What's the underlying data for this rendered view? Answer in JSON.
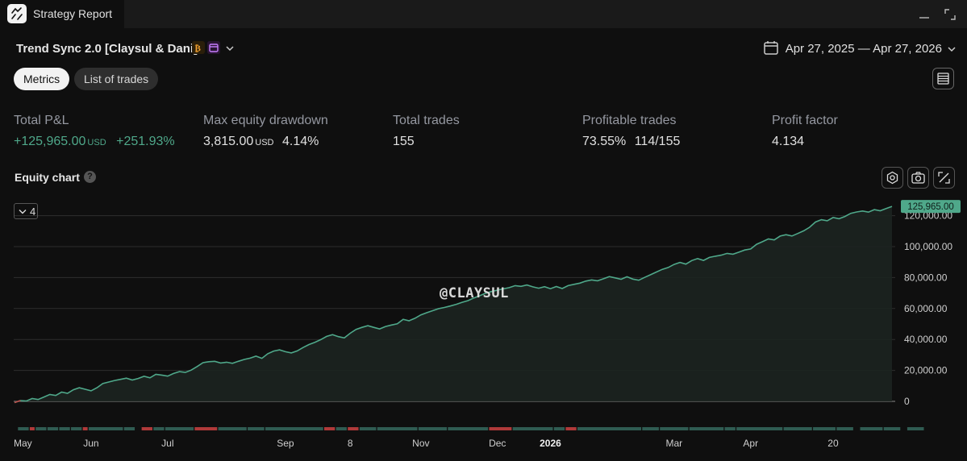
{
  "window": {
    "title": "Strategy Report",
    "app_icon": "strategy-report-icon",
    "controls": [
      "minimize-icon",
      "expand-icon"
    ]
  },
  "header": {
    "strategy_name": "Trend Sync 2.0 [Claysul & Dani]",
    "badges": [
      "bitcoin-icon",
      "calendar-badge-icon"
    ],
    "date_range": "Apr 27, 2025 — Apr 27, 2026"
  },
  "tabs": [
    {
      "label": "Metrics",
      "active": true
    },
    {
      "label": "List of trades",
      "active": false
    }
  ],
  "metrics": {
    "total_pl": {
      "label": "Total P&L",
      "value": "+125,965.00",
      "unit": "USD",
      "percent": "+251.93%"
    },
    "max_drawdown": {
      "label": "Max equity drawdown",
      "value": "3,815.00",
      "unit": "USD",
      "percent": "4.14%"
    },
    "total_trades": {
      "label": "Total trades",
      "value": "155"
    },
    "profitable_trades": {
      "label": "Profitable trades",
      "percent": "73.55%",
      "ratio": "114/155"
    },
    "profit_factor": {
      "label": "Profit factor",
      "value": "4.134"
    }
  },
  "equity_chart": {
    "title": "Equity chart",
    "help": "?",
    "collapse_count": "4",
    "watermark": "@CLAYSUL",
    "tools": [
      "settings-icon",
      "camera-icon",
      "fullscreen-icon"
    ]
  },
  "colors": {
    "accent_green": "#4fa88a",
    "loss_red": "#b03a3a",
    "bg": "#0f0f0f"
  },
  "chart_data": {
    "type": "area",
    "title": "",
    "xlabel": "",
    "ylabel": "",
    "ylim": [
      -8000,
      132000
    ],
    "last_value_label": "125,965.00",
    "y_ticks": [
      {
        "value": 120000,
        "label": "120,000.00"
      },
      {
        "value": 100000,
        "label": "100,000.00"
      },
      {
        "value": 80000,
        "label": "80,000.00"
      },
      {
        "value": 60000,
        "label": "60,000.00"
      },
      {
        "value": 40000,
        "label": "40,000.00"
      },
      {
        "value": 20000,
        "label": "20,000.00"
      },
      {
        "value": 0,
        "label": "0"
      }
    ],
    "x_ticks": [
      {
        "label": "May",
        "bold": false
      },
      {
        "label": "Jun",
        "bold": false
      },
      {
        "label": "Jul",
        "bold": false
      },
      {
        "label": "Sep",
        "bold": false
      },
      {
        "label": "8",
        "bold": false
      },
      {
        "label": "Nov",
        "bold": false
      },
      {
        "label": "Dec",
        "bold": false
      },
      {
        "label": "2026",
        "bold": true
      },
      {
        "label": "Mar",
        "bold": false
      },
      {
        "label": "Apr",
        "bold": false
      },
      {
        "label": "20",
        "bold": false
      }
    ],
    "x_tick_trade_index": [
      1,
      14,
      27,
      47,
      58,
      70,
      83,
      92,
      113,
      126,
      140
    ],
    "series": [
      {
        "values": [
          -800,
          500,
          200,
          1800,
          1200,
          2800,
          4500,
          3800,
          6000,
          5200,
          7500,
          8800,
          7800,
          6800,
          8800,
          11500,
          12500,
          13500,
          14200,
          15000,
          13800,
          14800,
          16200,
          15200,
          17500,
          17000,
          16300,
          18000,
          19200,
          18700,
          20200,
          22500,
          25000,
          25600,
          25900,
          24800,
          25300,
          24600,
          25900,
          27100,
          27900,
          29200,
          27800,
          30800,
          32500,
          33300,
          32100,
          31300,
          32600,
          34800,
          36700,
          38200,
          39900,
          42000,
          43100,
          41800,
          41000,
          44000,
          46500,
          47800,
          48900,
          47800,
          46800,
          48400,
          49300,
          50100,
          53000,
          52100,
          53700,
          55900,
          57300,
          58600,
          59900,
          60700,
          61600,
          62700,
          64000,
          65100,
          66800,
          68300,
          69900,
          71000,
          71900,
          72700,
          73500,
          74800,
          74300,
          75200,
          74000,
          73100,
          74100,
          72800,
          74200,
          72900,
          74800,
          75600,
          76400,
          77700,
          78500,
          77900,
          79200,
          80600,
          79800,
          78900,
          80500,
          79000,
          78300,
          80100,
          81800,
          83600,
          85300,
          86500,
          88500,
          89800,
          88700,
          91000,
          92300,
          91100,
          93000,
          93800,
          94500,
          95600,
          95100,
          96400,
          97800,
          98500,
          101500,
          103200,
          105000,
          104300,
          106800,
          107700,
          106900,
          108500,
          110200,
          112500,
          115900,
          117400,
          116700,
          118800,
          118000,
          119500,
          121500,
          122400,
          123000,
          122300,
          123900,
          123200,
          124600,
          125965
        ]
      }
    ],
    "trade_bars": [
      {
        "from": 2,
        "to": 3,
        "result": "win"
      },
      {
        "from": 4,
        "to": 4,
        "result": "loss"
      },
      {
        "from": 5,
        "to": 6,
        "result": "win"
      },
      {
        "from": 7,
        "to": 8,
        "result": "win"
      },
      {
        "from": 9,
        "to": 10,
        "result": "win"
      },
      {
        "from": 11,
        "to": 12,
        "result": "win"
      },
      {
        "from": 13,
        "to": 13,
        "result": "loss"
      },
      {
        "from": 14,
        "to": 19,
        "result": "win"
      },
      {
        "from": 20,
        "to": 21,
        "result": "win"
      },
      {
        "from": 23,
        "to": 24,
        "result": "loss"
      },
      {
        "from": 25,
        "to": 26,
        "result": "win"
      },
      {
        "from": 27,
        "to": 31,
        "result": "win"
      },
      {
        "from": 32,
        "to": 35,
        "result": "loss"
      },
      {
        "from": 36,
        "to": 40,
        "result": "win"
      },
      {
        "from": 41,
        "to": 43,
        "result": "win"
      },
      {
        "from": 44,
        "to": 53,
        "result": "win"
      },
      {
        "from": 54,
        "to": 55,
        "result": "loss"
      },
      {
        "from": 56,
        "to": 57,
        "result": "win"
      },
      {
        "from": 58,
        "to": 59,
        "result": "loss"
      },
      {
        "from": 60,
        "to": 62,
        "result": "win"
      },
      {
        "from": 63,
        "to": 69,
        "result": "win"
      },
      {
        "from": 70,
        "to": 74,
        "result": "win"
      },
      {
        "from": 75,
        "to": 81,
        "result": "win"
      },
      {
        "from": 82,
        "to": 85,
        "result": "loss"
      },
      {
        "from": 86,
        "to": 92,
        "result": "win"
      },
      {
        "from": 93,
        "to": 94,
        "result": "win"
      },
      {
        "from": 95,
        "to": 96,
        "result": "loss"
      },
      {
        "from": 97,
        "to": 107,
        "result": "win"
      },
      {
        "from": 108,
        "to": 110,
        "result": "win"
      },
      {
        "from": 111,
        "to": 115,
        "result": "win"
      },
      {
        "from": 116,
        "to": 121,
        "result": "win"
      },
      {
        "from": 122,
        "to": 123,
        "result": "win"
      },
      {
        "from": 124,
        "to": 131,
        "result": "win"
      },
      {
        "from": 132,
        "to": 136,
        "result": "win"
      },
      {
        "from": 137,
        "to": 140,
        "result": "win"
      },
      {
        "from": 141,
        "to": 143,
        "result": "win"
      },
      {
        "from": 145,
        "to": 148,
        "result": "win"
      },
      {
        "from": 149,
        "to": 151,
        "result": "win"
      },
      {
        "from": 153,
        "to": 155,
        "result": "win"
      }
    ]
  }
}
